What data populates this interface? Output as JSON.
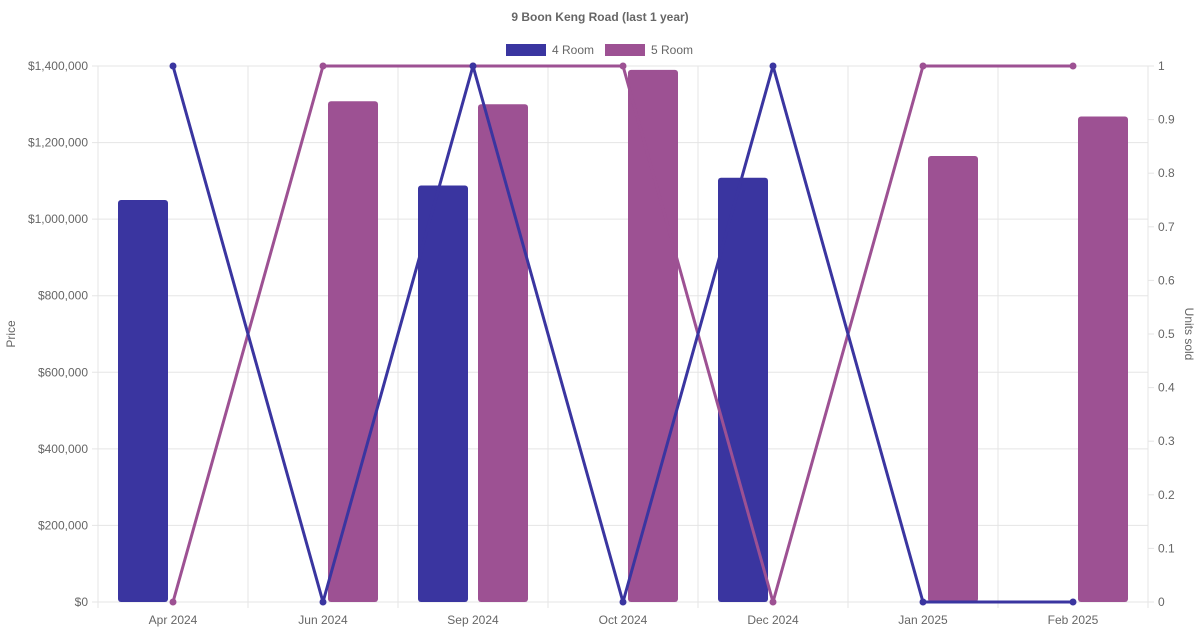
{
  "chart_data": {
    "type": "bar",
    "title": "9 Boon Keng Road (last 1 year)",
    "categories": [
      "Apr 2024",
      "Jun 2024",
      "Sep 2024",
      "Oct 2024",
      "Dec 2024",
      "Jan 2025",
      "Feb 2025"
    ],
    "y_left": {
      "label": "Price",
      "range": [
        0,
        1400000
      ],
      "ticks": [
        0,
        200000,
        400000,
        600000,
        800000,
        1000000,
        1200000,
        1400000
      ],
      "tick_labels": [
        "$0",
        "$200,000",
        "$400,000",
        "$600,000",
        "$800,000",
        "$1,000,000",
        "$1,200,000",
        "$1,400,000"
      ]
    },
    "y_right": {
      "label": "Units sold",
      "range": [
        0,
        1
      ],
      "ticks": [
        0,
        0.1,
        0.2,
        0.3,
        0.4,
        0.5,
        0.6,
        0.7,
        0.8,
        0.9,
        1
      ],
      "tick_labels": [
        "0",
        "0.1",
        "0.2",
        "0.3",
        "0.4",
        "0.5",
        "0.6",
        "0.7",
        "0.8",
        "0.9",
        "1"
      ]
    },
    "legend_position": "top-center",
    "grid": true,
    "series": [
      {
        "name": "4 Room",
        "color": "#3a35a0",
        "price": [
          1050000,
          null,
          1088000,
          null,
          1108000,
          null,
          null
        ],
        "units": [
          1,
          0,
          1,
          0,
          1,
          0,
          0
        ]
      },
      {
        "name": "5 Room",
        "color": "#9d5193",
        "price": [
          null,
          1308000,
          1300000,
          1390000,
          null,
          1165000,
          1268000
        ],
        "units": [
          0,
          1,
          1,
          1,
          0,
          1,
          1
        ]
      }
    ]
  }
}
